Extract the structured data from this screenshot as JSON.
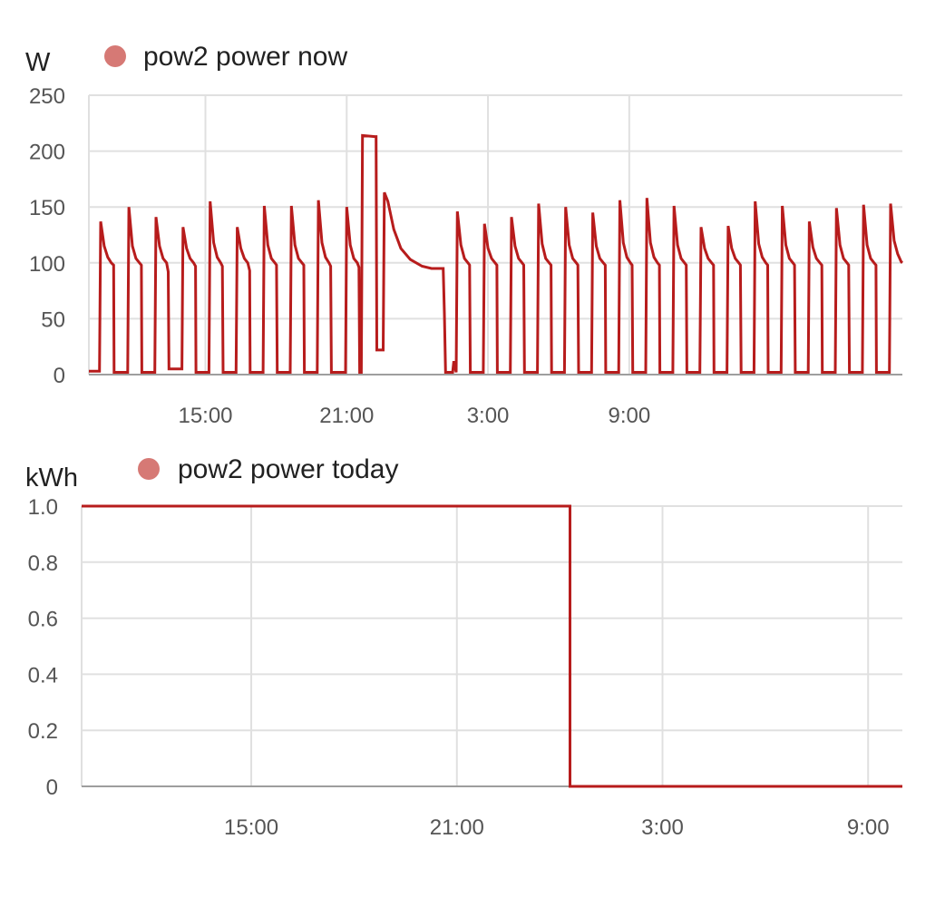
{
  "colors": {
    "line": "#b71c1c",
    "legend_dot": "#d67975",
    "grid": "#e0e0e0",
    "text": "#212121",
    "tick": "#555555"
  },
  "chart_data": [
    {
      "type": "line",
      "unit": "W",
      "series": [
        {
          "name": "pow2 power now",
          "points": [
            [
              10.0,
              3
            ],
            [
              10.5,
              3
            ],
            [
              10.55,
              137
            ],
            [
              10.7,
              115
            ],
            [
              10.85,
              105
            ],
            [
              11.0,
              100
            ],
            [
              11.1,
              98
            ],
            [
              11.12,
              2
            ],
            [
              11.7,
              2
            ],
            [
              11.75,
              150
            ],
            [
              11.9,
              115
            ],
            [
              12.05,
              104
            ],
            [
              12.2,
              100
            ],
            [
              12.28,
              98
            ],
            [
              12.3,
              2
            ],
            [
              12.85,
              2
            ],
            [
              12.9,
              141
            ],
            [
              13.05,
              115
            ],
            [
              13.2,
              104
            ],
            [
              13.35,
              100
            ],
            [
              13.42,
              92
            ],
            [
              13.45,
              5
            ],
            [
              14.0,
              5
            ],
            [
              14.05,
              132
            ],
            [
              14.2,
              113
            ],
            [
              14.35,
              104
            ],
            [
              14.5,
              100
            ],
            [
              14.58,
              97
            ],
            [
              14.6,
              2
            ],
            [
              15.15,
              2
            ],
            [
              15.2,
              155
            ],
            [
              15.35,
              118
            ],
            [
              15.5,
              105
            ],
            [
              15.65,
              100
            ],
            [
              15.72,
              97
            ],
            [
              15.75,
              2
            ],
            [
              16.3,
              2
            ],
            [
              16.35,
              132
            ],
            [
              16.5,
              113
            ],
            [
              16.65,
              104
            ],
            [
              16.8,
              100
            ],
            [
              16.88,
              93
            ],
            [
              16.9,
              2
            ],
            [
              17.45,
              2
            ],
            [
              17.5,
              151
            ],
            [
              17.65,
              116
            ],
            [
              17.8,
              104
            ],
            [
              17.95,
              100
            ],
            [
              18.02,
              98
            ],
            [
              18.05,
              2
            ],
            [
              18.6,
              2
            ],
            [
              18.65,
              151
            ],
            [
              18.8,
              116
            ],
            [
              18.95,
              104
            ],
            [
              19.1,
              100
            ],
            [
              19.18,
              98
            ],
            [
              19.2,
              2
            ],
            [
              19.75,
              2
            ],
            [
              19.8,
              156
            ],
            [
              19.95,
              118
            ],
            [
              20.1,
              105
            ],
            [
              20.25,
              100
            ],
            [
              20.32,
              97
            ],
            [
              20.35,
              2
            ],
            [
              20.95,
              2
            ],
            [
              21.0,
              150
            ],
            [
              21.15,
              116
            ],
            [
              21.3,
              104
            ],
            [
              21.45,
              100
            ],
            [
              21.52,
              96
            ],
            [
              21.55,
              2
            ],
            [
              21.62,
              2
            ],
            [
              21.67,
              214
            ],
            [
              22.2,
              213
            ],
            [
              22.25,
              213
            ],
            [
              22.28,
              22
            ],
            [
              22.55,
              22
            ],
            [
              22.6,
              163
            ],
            [
              22.75,
              155
            ],
            [
              23.0,
              130
            ],
            [
              23.3,
              113
            ],
            [
              23.7,
              103
            ],
            [
              24.2,
              97
            ],
            [
              24.6,
              95
            ],
            [
              24.9,
              95
            ],
            [
              25.1,
              95
            ],
            [
              25.15,
              55
            ],
            [
              25.2,
              2
            ],
            [
              25.5,
              2
            ],
            [
              25.55,
              12
            ],
            [
              25.65,
              2
            ],
            [
              25.7,
              146
            ],
            [
              25.85,
              116
            ],
            [
              26.0,
              104
            ],
            [
              26.15,
              100
            ],
            [
              26.22,
              98
            ],
            [
              26.25,
              2
            ],
            [
              26.8,
              2
            ],
            [
              26.85,
              135
            ],
            [
              27.0,
              113
            ],
            [
              27.15,
              104
            ],
            [
              27.3,
              100
            ],
            [
              27.38,
              98
            ],
            [
              27.4,
              2
            ],
            [
              27.95,
              2
            ],
            [
              28.0,
              141
            ],
            [
              28.15,
              115
            ],
            [
              28.3,
              104
            ],
            [
              28.45,
              100
            ],
            [
              28.52,
              98
            ],
            [
              28.55,
              2
            ],
            [
              29.1,
              2
            ],
            [
              29.15,
              153
            ],
            [
              29.3,
              117
            ],
            [
              29.45,
              104
            ],
            [
              29.6,
              100
            ],
            [
              29.68,
              98
            ],
            [
              29.7,
              2
            ],
            [
              30.25,
              2
            ],
            [
              30.3,
              150
            ],
            [
              30.45,
              116
            ],
            [
              30.6,
              104
            ],
            [
              30.75,
              100
            ],
            [
              30.82,
              98
            ],
            [
              30.85,
              2
            ],
            [
              31.4,
              2
            ],
            [
              31.45,
              145
            ],
            [
              31.6,
              115
            ],
            [
              31.75,
              104
            ],
            [
              31.9,
              100
            ],
            [
              31.98,
              98
            ],
            [
              32.0,
              2
            ],
            [
              32.55,
              2
            ],
            [
              32.6,
              156
            ],
            [
              32.75,
              118
            ],
            [
              32.9,
              105
            ],
            [
              33.05,
              100
            ],
            [
              33.12,
              98
            ],
            [
              33.15,
              2
            ],
            [
              33.7,
              2
            ],
            [
              33.75,
              158
            ],
            [
              33.9,
              118
            ],
            [
              34.05,
              105
            ],
            [
              34.2,
              100
            ],
            [
              34.28,
              98
            ],
            [
              34.3,
              2
            ],
            [
              34.85,
              2
            ],
            [
              34.9,
              151
            ],
            [
              35.05,
              116
            ],
            [
              35.2,
              104
            ],
            [
              35.35,
              100
            ],
            [
              35.42,
              98
            ],
            [
              35.45,
              2
            ],
            [
              36.0,
              2
            ],
            [
              36.05,
              132
            ],
            [
              36.2,
              113
            ],
            [
              36.35,
              104
            ],
            [
              36.5,
              100
            ],
            [
              36.58,
              98
            ],
            [
              36.6,
              2
            ],
            [
              37.15,
              2
            ],
            [
              37.2,
              133
            ],
            [
              37.35,
              113
            ],
            [
              37.5,
              104
            ],
            [
              37.65,
              100
            ],
            [
              37.72,
              98
            ],
            [
              37.75,
              2
            ],
            [
              38.3,
              2
            ],
            [
              38.35,
              155
            ],
            [
              38.5,
              117
            ],
            [
              38.65,
              105
            ],
            [
              38.8,
              100
            ],
            [
              38.88,
              98
            ],
            [
              38.9,
              2
            ],
            [
              39.45,
              2
            ],
            [
              39.5,
              151
            ],
            [
              39.65,
              116
            ],
            [
              39.8,
              104
            ],
            [
              39.95,
              100
            ],
            [
              40.02,
              98
            ],
            [
              40.05,
              2
            ],
            [
              40.6,
              2
            ],
            [
              40.65,
              137
            ],
            [
              40.8,
              114
            ],
            [
              40.95,
              104
            ],
            [
              41.1,
              100
            ],
            [
              41.18,
              98
            ],
            [
              41.2,
              2
            ],
            [
              41.75,
              2
            ],
            [
              41.8,
              149
            ],
            [
              41.95,
              116
            ],
            [
              42.1,
              104
            ],
            [
              42.25,
              100
            ],
            [
              42.32,
              98
            ],
            [
              42.35,
              2
            ],
            [
              42.9,
              2
            ],
            [
              42.95,
              152
            ],
            [
              43.1,
              116
            ],
            [
              43.25,
              104
            ],
            [
              43.4,
              100
            ],
            [
              43.48,
              98
            ],
            [
              43.5,
              2
            ],
            [
              44.05,
              2
            ],
            [
              44.1,
              153
            ],
            [
              44.25,
              120
            ],
            [
              44.4,
              108
            ],
            [
              44.55,
              101
            ],
            [
              44.6,
              100
            ]
          ]
        }
      ],
      "x_ticks": [
        {
          "value": 15,
          "label": "15:00"
        },
        {
          "value": 21,
          "label": "21:00"
        },
        {
          "value": 27,
          "label": "3:00"
        },
        {
          "value": 33,
          "label": "9:00"
        }
      ],
      "y_ticks": [
        {
          "value": 0,
          "label": "0"
        },
        {
          "value": 50,
          "label": "50"
        },
        {
          "value": 100,
          "label": "100"
        },
        {
          "value": 150,
          "label": "150"
        },
        {
          "value": 200,
          "label": "200"
        },
        {
          "value": 250,
          "label": "250"
        }
      ],
      "xlim": [
        10.05,
        44.6
      ],
      "ylim": [
        0,
        250
      ],
      "grid": true,
      "legend_position": "top-left"
    },
    {
      "type": "line",
      "unit": "kWh",
      "series": [
        {
          "name": "pow2 power today",
          "points": [
            [
              10.05,
              1.0
            ],
            [
              24.3,
              1.0
            ],
            [
              24.3,
              0.0
            ],
            [
              44.6,
              0.0
            ]
          ]
        }
      ],
      "x_ticks": [
        {
          "value": 15,
          "label": "15:00"
        },
        {
          "value": 21,
          "label": "21:00"
        },
        {
          "value": 27,
          "label": "3:00"
        },
        {
          "value": 33,
          "label": "9:00"
        }
      ],
      "y_ticks": [
        {
          "value": 0,
          "label": "0"
        },
        {
          "value": 0.2,
          "label": "0.2"
        },
        {
          "value": 0.4,
          "label": "0.4"
        },
        {
          "value": 0.6,
          "label": "0.6"
        },
        {
          "value": 0.8,
          "label": "0.8"
        },
        {
          "value": 1.0,
          "label": "1.0"
        }
      ],
      "xlim": [
        10.05,
        34.0
      ],
      "ylim": [
        0,
        1.0
      ],
      "grid": true,
      "legend_position": "top-left"
    }
  ]
}
